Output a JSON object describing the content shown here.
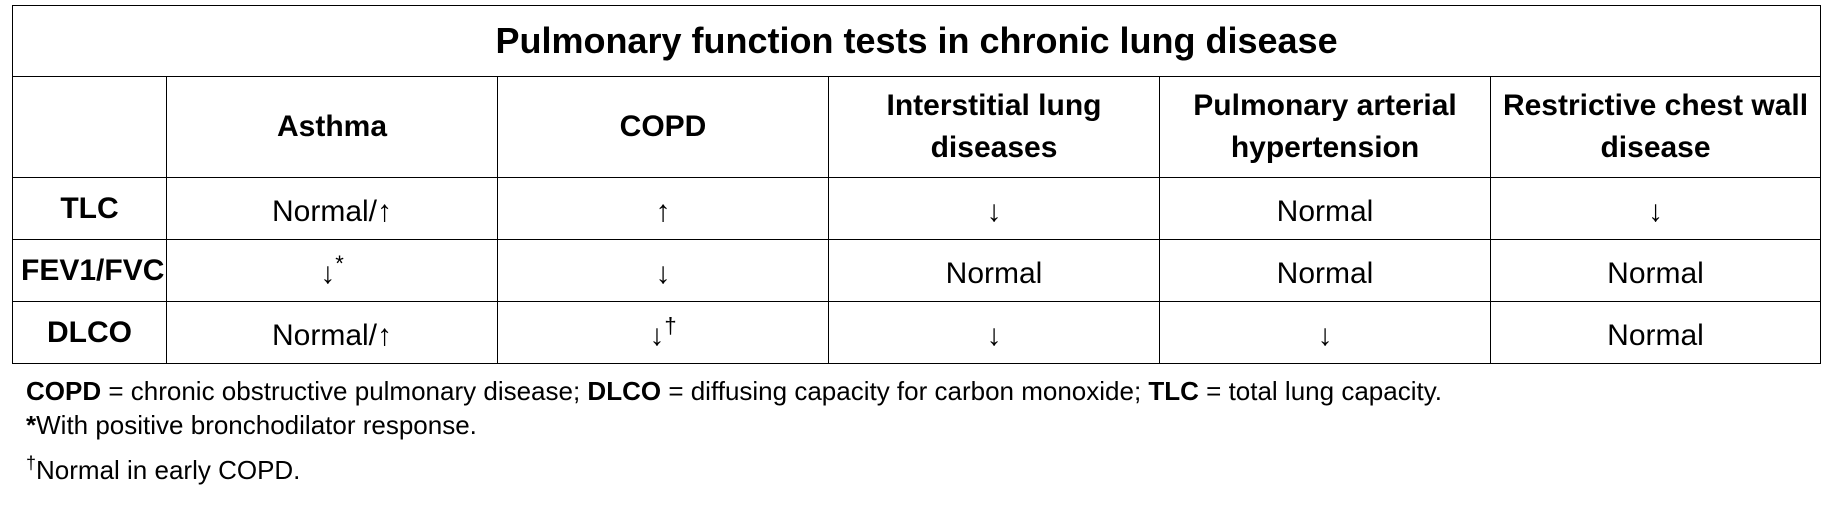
{
  "table": {
    "title": "Pulmonary function tests in chronic lung disease",
    "header": {
      "blank": "",
      "columns": [
        "Asthma",
        "COPD",
        "Interstitial lung diseases",
        "Pulmonary arterial hypertension",
        "Restrictive chest wall disease"
      ]
    },
    "rows": [
      {
        "label": "TLC",
        "cells": [
          "Normal/↑",
          "↑",
          "↓",
          "Normal",
          "↓"
        ],
        "sups": [
          "",
          "",
          "",
          "",
          ""
        ]
      },
      {
        "label": "FEV1/FVC",
        "cells": [
          "↓",
          "↓",
          "Normal",
          "Normal",
          "Normal"
        ],
        "sups": [
          "*",
          "",
          "",
          "",
          ""
        ]
      },
      {
        "label": "DLCO",
        "cells": [
          "Normal/↑",
          "↓",
          "↓",
          "↓",
          "Normal"
        ],
        "sups": [
          "",
          "†",
          "",
          "",
          ""
        ]
      }
    ]
  },
  "notes": {
    "abbrev": [
      {
        "term": "COPD",
        "def": " = chronic obstructive pulmonary disease; "
      },
      {
        "term": "DLCO",
        "def": " = diffusing capacity for carbon monoxide; "
      },
      {
        "term": "TLC",
        "def": " = total lung capacity."
      }
    ],
    "asterisk_mark": "*",
    "asterisk_text": "With positive bronchodilator response.",
    "dagger_mark": "†",
    "dagger_text": "Normal in early COPD."
  }
}
